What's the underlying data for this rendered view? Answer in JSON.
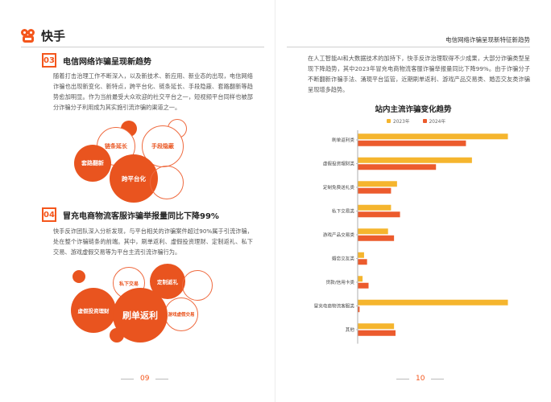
{
  "left_page": {
    "brand": "快手",
    "section3": {
      "num": "03",
      "title": "电信网络诈骗呈现新趋势",
      "body": "随着打击治理工作不断深入，以及新技术、新应用、新业态的出现，电信网络诈骗也出现新变化、新特点，跨平台化、链条延长、手段隐蔽、套路翻新等趋势愈加明显。作为当前最受大众欢迎的社交平台之一，短视频平台同样也被部分诈骗分子利用成为其实施引流诈骗的渠道之一。",
      "bubbles": [
        "链条延长",
        "手段隐蔽",
        "套路翻新",
        "跨平台化"
      ]
    },
    "section4": {
      "num": "04",
      "title": "冒充电商物流客服诈骗举报量同比下降99%",
      "body": "快手反诈团队深入分析发现，与平台相关的诈骗案件超过90%属于引流诈骗，处在整个诈骗链条的前端。其中，刷单返利、虚假投资理财、定制返礼、私下交易、游戏虚假交易等为平台主流引流诈骗行为。",
      "bubbles": [
        "私下交易",
        "定制返礼",
        "虚假投资理财",
        "游戏虚假交易",
        "刷单返利"
      ]
    },
    "page_number": "09"
  },
  "right_page": {
    "header": "电信网络诈骗呈现新特征新趋势",
    "body": "在人工智能AI和大数据技术的加持下，快手反诈治理取得不少成果，大部分诈骗类型呈现下降趋势，其中2023年冒充电商物流客服诈骗举报量同比下降99%。由于诈骗分子不断翻新诈骗手法、涌現平台监管，近期刷单返利、游戏产品交易类、婚恋交友类诈骗呈现增多趋势。",
    "page_number": "10"
  },
  "chart_data": {
    "type": "bar",
    "orientation": "horizontal",
    "title": "站内主流诈骗变化趋势",
    "categories": [
      "刷单返利类",
      "虚假投资理财类",
      "定制免费送礼类",
      "私下交易类",
      "游戏产品交易类",
      "婚恋交友类",
      "贷款/信用卡类",
      "冒充电商物流客服类",
      "其他"
    ],
    "series": [
      {
        "name": "2023年",
        "color": "#f5b52e",
        "values": [
          100,
          76,
          26,
          22,
          20,
          4,
          3,
          100,
          24
        ]
      },
      {
        "name": "2024年",
        "color": "#ec5b2d",
        "values": [
          72,
          52,
          22,
          28,
          24,
          6,
          7,
          1,
          25
        ]
      }
    ],
    "xlim": [
      0,
      100
    ],
    "gridlines": false,
    "legend_position": "top"
  }
}
